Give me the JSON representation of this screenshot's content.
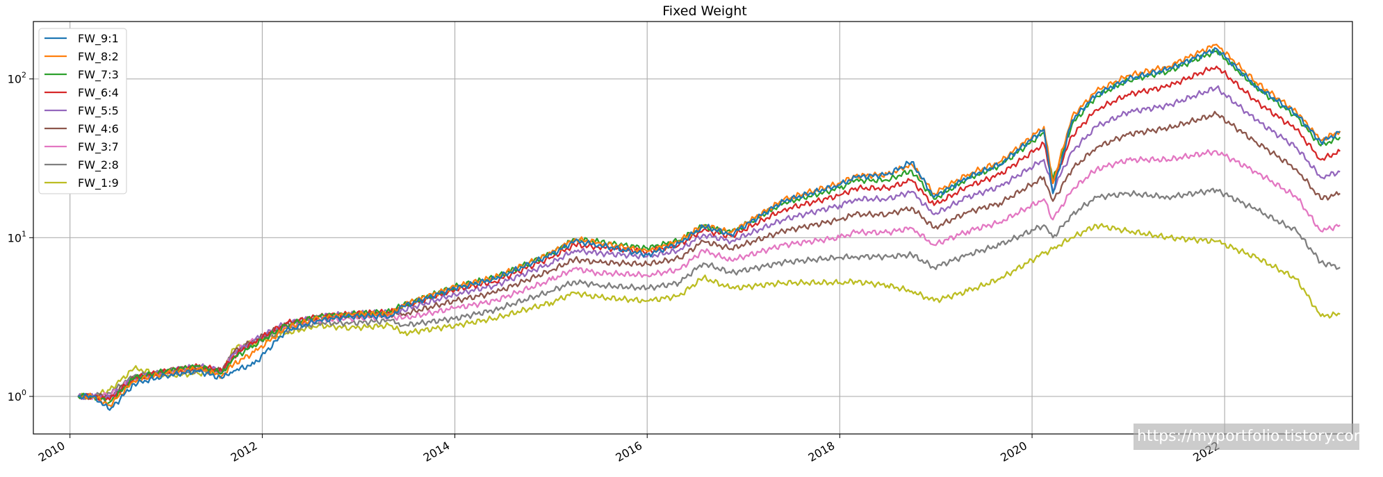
{
  "chart_data": {
    "type": "line",
    "title": "Fixed Weight",
    "xlabel": "",
    "ylabel": "",
    "yscale": "log",
    "xlim": [
      "2009-08-15",
      "2023-05-01"
    ],
    "ylim": [
      0.58,
      230
    ],
    "grid": true,
    "legend_position": "top-left",
    "x_ticks": [
      "2010",
      "2012",
      "2014",
      "2016",
      "2018",
      "2020",
      "2022"
    ],
    "y_ticks": [
      {
        "value": 1,
        "base": "10",
        "exp": "0"
      },
      {
        "value": 10,
        "base": "10",
        "exp": "1"
      },
      {
        "value": 100,
        "base": "10",
        "exp": "2"
      }
    ],
    "x": [
      "2010-02-01",
      "2010-04-01",
      "2010-06-01",
      "2010-09-01",
      "2011-01-01",
      "2011-05-01",
      "2011-08-01",
      "2011-09-15",
      "2011-12-01",
      "2012-04-01",
      "2012-08-01",
      "2012-12-01",
      "2013-05-01",
      "2013-06-20",
      "2014-01-01",
      "2014-06-01",
      "2015-01-01",
      "2015-04-01",
      "2015-07-01",
      "2016-01-01",
      "2016-05-01",
      "2016-08-01",
      "2016-11-15",
      "2017-06-01",
      "2018-01-01",
      "2018-03-01",
      "2018-07-01",
      "2018-10-01",
      "2018-12-25",
      "2019-05-01",
      "2019-09-01",
      "2020-02-15",
      "2020-03-20",
      "2020-06-01",
      "2020-09-01",
      "2021-01-01",
      "2021-06-01",
      "2021-12-01",
      "2022-05-01",
      "2022-10-01",
      "2023-01-01",
      "2023-03-15"
    ],
    "series": [
      {
        "name": "FW_9:1",
        "color": "#1f77b4",
        "values": [
          1.0,
          1.0,
          0.82,
          1.2,
          1.35,
          1.45,
          1.3,
          1.45,
          1.6,
          2.6,
          3.0,
          3.2,
          3.2,
          3.7,
          4.8,
          5.5,
          7.8,
          9.5,
          9.0,
          7.8,
          9.2,
          11.8,
          10.5,
          17.0,
          21.5,
          24.0,
          25.0,
          30.0,
          18.0,
          24.0,
          29.0,
          48.0,
          19.0,
          55.0,
          80.0,
          100.0,
          115.0,
          155.0,
          90.0,
          60.0,
          40.0,
          46.0
        ]
      },
      {
        "name": "FW_8:2",
        "color": "#ff7f0e",
        "values": [
          1.0,
          1.0,
          0.88,
          1.25,
          1.4,
          1.5,
          1.35,
          1.6,
          1.9,
          2.7,
          3.1,
          3.3,
          3.3,
          3.8,
          4.9,
          5.6,
          8.0,
          9.8,
          9.3,
          8.2,
          9.5,
          12.0,
          10.8,
          17.3,
          22.0,
          24.5,
          25.0,
          29.0,
          19.0,
          25.0,
          30.0,
          50.0,
          22.0,
          58.0,
          84.0,
          105.0,
          120.0,
          165.0,
          95.0,
          62.0,
          41.0,
          47.0
        ]
      },
      {
        "name": "FW_7:3",
        "color": "#2ca02c",
        "values": [
          1.0,
          1.0,
          0.92,
          1.3,
          1.45,
          1.55,
          1.4,
          1.75,
          2.1,
          2.8,
          3.2,
          3.3,
          3.4,
          3.8,
          4.9,
          5.6,
          8.0,
          9.8,
          9.4,
          8.6,
          9.6,
          11.8,
          10.8,
          16.5,
          20.5,
          23.0,
          23.0,
          26.5,
          17.5,
          23.5,
          28.5,
          46.0,
          23.0,
          52.0,
          78.0,
          98.0,
          112.0,
          150.0,
          88.0,
          58.0,
          38.0,
          43.0
        ]
      },
      {
        "name": "FW_6:4",
        "color": "#d62728",
        "values": [
          1.0,
          1.0,
          0.95,
          1.3,
          1.45,
          1.55,
          1.45,
          1.8,
          2.2,
          2.9,
          3.2,
          3.3,
          3.4,
          3.7,
          4.7,
          5.3,
          7.5,
          9.0,
          8.7,
          8.2,
          9.0,
          11.2,
          10.2,
          15.0,
          18.5,
          20.5,
          20.5,
          23.0,
          16.0,
          21.0,
          25.0,
          39.0,
          22.0,
          44.0,
          64.0,
          80.0,
          90.0,
          120.0,
          72.0,
          48.0,
          31.0,
          35.0
        ]
      },
      {
        "name": "FW_5:5",
        "color": "#9467bd",
        "values": [
          1.0,
          1.0,
          0.98,
          1.3,
          1.45,
          1.55,
          1.45,
          1.85,
          2.25,
          2.9,
          3.2,
          3.3,
          3.4,
          3.5,
          4.4,
          5.0,
          6.9,
          8.3,
          8.0,
          7.6,
          8.3,
          10.5,
          9.5,
          13.0,
          16.0,
          17.5,
          17.5,
          19.5,
          14.0,
          18.0,
          21.0,
          31.0,
          20.0,
          35.0,
          50.0,
          62.0,
          68.0,
          88.0,
          55.0,
          37.0,
          24.0,
          26.0
        ]
      },
      {
        "name": "FW_4:6",
        "color": "#8c564b",
        "values": [
          1.0,
          1.0,
          1.0,
          1.3,
          1.45,
          1.5,
          1.45,
          1.9,
          2.25,
          2.85,
          3.15,
          3.2,
          3.3,
          3.3,
          4.0,
          4.5,
          6.2,
          7.3,
          7.0,
          6.8,
          7.4,
          9.5,
          8.5,
          11.0,
          13.0,
          14.0,
          14.0,
          15.5,
          11.5,
          14.5,
          16.5,
          24.0,
          17.0,
          27.0,
          37.0,
          45.0,
          49.0,
          60.0,
          40.0,
          27.0,
          17.5,
          19.0
        ]
      },
      {
        "name": "FW_3:7",
        "color": "#e377c2",
        "values": [
          1.0,
          1.0,
          1.02,
          1.3,
          1.4,
          1.5,
          1.45,
          1.9,
          2.25,
          2.75,
          3.0,
          3.1,
          3.2,
          3.1,
          3.6,
          4.0,
          5.4,
          6.4,
          6.0,
          5.8,
          6.3,
          8.3,
          7.2,
          9.0,
          10.0,
          10.8,
          10.8,
          11.5,
          9.0,
          11.0,
          12.5,
          17.5,
          13.0,
          20.0,
          27.0,
          31.0,
          31.0,
          35.0,
          26.0,
          18.0,
          11.0,
          12.0
        ]
      },
      {
        "name": "FW_2:8",
        "color": "#7f7f7f",
        "values": [
          1.0,
          1.0,
          1.05,
          1.35,
          1.4,
          1.45,
          1.45,
          1.9,
          2.2,
          2.6,
          2.9,
          2.9,
          3.0,
          2.8,
          3.1,
          3.5,
          4.6,
          5.3,
          5.0,
          4.8,
          5.2,
          6.9,
          6.0,
          7.0,
          7.5,
          7.6,
          7.6,
          7.8,
          6.5,
          7.8,
          9.0,
          12.0,
          10.0,
          14.0,
          18.0,
          19.0,
          18.0,
          20.0,
          15.0,
          11.0,
          7.0,
          6.5
        ]
      },
      {
        "name": "FW_1:9",
        "color": "#bcbd22",
        "values": [
          1.0,
          1.0,
          1.1,
          1.5,
          1.35,
          1.4,
          1.45,
          2.0,
          2.2,
          2.5,
          2.8,
          2.7,
          2.8,
          2.5,
          2.8,
          3.1,
          3.9,
          4.5,
          4.2,
          4.0,
          4.3,
          5.6,
          4.8,
          5.2,
          5.2,
          5.3,
          5.0,
          4.6,
          4.0,
          4.6,
          5.5,
          8.0,
          8.5,
          10.0,
          12.0,
          11.0,
          10.0,
          9.5,
          7.5,
          5.5,
          3.2,
          3.3
        ]
      }
    ]
  },
  "watermark": "https://myportfolio.tistory.com"
}
